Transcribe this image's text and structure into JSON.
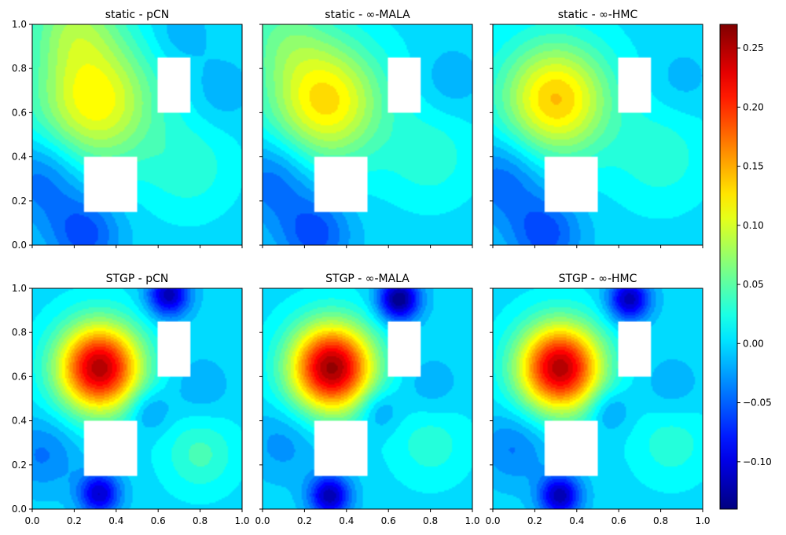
{
  "chart_data": {
    "type": "heatmap",
    "shared_x_ticks": [
      "0.0",
      "0.2",
      "0.4",
      "0.6",
      "0.8",
      "1.0"
    ],
    "shared_y_ticks": [
      "0.0",
      "0.2",
      "0.4",
      "0.6",
      "0.8",
      "1.0"
    ],
    "xlim": [
      0,
      1
    ],
    "ylim": [
      0,
      1
    ],
    "colormap": "jet",
    "holes": [
      {
        "x0": 0.25,
        "x1": 0.5,
        "y0": 0.15,
        "y1": 0.4
      },
      {
        "x0": 0.6,
        "x1": 0.75,
        "y0": 0.6,
        "y1": 0.85
      }
    ],
    "colorbar": {
      "range": [
        -0.14,
        0.27
      ],
      "ticks": [
        -0.1,
        -0.05,
        0.0,
        0.05,
        0.1,
        0.15,
        0.2,
        0.25
      ],
      "tick_labels": [
        "−0.10",
        "−0.05",
        "0.00",
        "0.05",
        "0.10",
        "0.15",
        "0.20",
        "0.25"
      ]
    },
    "panels": [
      {
        "title": "static - pCN",
        "base": 0.0,
        "components": [
          {
            "x": 0.3,
            "y": 0.65,
            "amp": 0.12,
            "sigma": 0.2
          },
          {
            "x": 0.2,
            "y": 1.0,
            "amp": 0.06,
            "sigma": 0.15
          },
          {
            "x": 0.05,
            "y": 0.3,
            "amp": -0.05,
            "sigma": 0.14
          },
          {
            "x": 0.25,
            "y": 0.05,
            "amp": -0.06,
            "sigma": 0.12
          },
          {
            "x": 0.75,
            "y": 0.35,
            "amp": 0.03,
            "sigma": 0.15
          },
          {
            "x": 0.9,
            "y": 0.7,
            "amp": -0.02,
            "sigma": 0.1
          },
          {
            "x": 0.7,
            "y": 0.95,
            "amp": -0.02,
            "sigma": 0.1
          }
        ]
      },
      {
        "title": "static - ∞-MALA",
        "base": 0.0,
        "components": [
          {
            "x": 0.3,
            "y": 0.65,
            "amp": 0.13,
            "sigma": 0.19
          },
          {
            "x": 0.1,
            "y": 0.95,
            "amp": 0.04,
            "sigma": 0.15
          },
          {
            "x": 0.05,
            "y": 0.3,
            "amp": -0.05,
            "sigma": 0.14
          },
          {
            "x": 0.25,
            "y": 0.05,
            "amp": -0.06,
            "sigma": 0.12
          },
          {
            "x": 0.8,
            "y": 0.4,
            "amp": 0.03,
            "sigma": 0.15
          },
          {
            "x": 0.9,
            "y": 0.75,
            "amp": -0.02,
            "sigma": 0.1
          }
        ]
      },
      {
        "title": "static - ∞-HMC",
        "base": 0.0,
        "components": [
          {
            "x": 0.3,
            "y": 0.66,
            "amp": 0.14,
            "sigma": 0.18
          },
          {
            "x": 0.05,
            "y": 0.3,
            "amp": -0.05,
            "sigma": 0.14
          },
          {
            "x": 0.25,
            "y": 0.05,
            "amp": -0.06,
            "sigma": 0.12
          },
          {
            "x": 0.8,
            "y": 0.4,
            "amp": 0.03,
            "sigma": 0.16
          },
          {
            "x": 0.9,
            "y": 0.75,
            "amp": -0.015,
            "sigma": 0.1
          }
        ]
      },
      {
        "title": "STGP - pCN",
        "base": 0.0,
        "components": [
          {
            "x": 0.32,
            "y": 0.64,
            "amp": 0.25,
            "sigma": 0.14
          },
          {
            "x": 0.65,
            "y": 0.97,
            "amp": -0.12,
            "sigma": 0.07
          },
          {
            "x": 0.32,
            "y": 0.07,
            "amp": -0.11,
            "sigma": 0.07
          },
          {
            "x": 0.05,
            "y": 0.25,
            "amp": -0.04,
            "sigma": 0.12
          },
          {
            "x": 0.8,
            "y": 0.25,
            "amp": 0.04,
            "sigma": 0.12
          },
          {
            "x": 0.55,
            "y": 0.45,
            "amp": -0.04,
            "sigma": 0.07
          },
          {
            "x": 0.8,
            "y": 0.55,
            "amp": -0.02,
            "sigma": 0.1
          }
        ]
      },
      {
        "title": "STGP - ∞-MALA",
        "base": 0.0,
        "components": [
          {
            "x": 0.33,
            "y": 0.64,
            "amp": 0.26,
            "sigma": 0.14
          },
          {
            "x": 0.65,
            "y": 0.95,
            "amp": -0.14,
            "sigma": 0.07
          },
          {
            "x": 0.32,
            "y": 0.06,
            "amp": -0.12,
            "sigma": 0.07
          },
          {
            "x": 0.1,
            "y": 0.3,
            "amp": -0.03,
            "sigma": 0.12
          },
          {
            "x": 0.8,
            "y": 0.3,
            "amp": 0.03,
            "sigma": 0.13
          },
          {
            "x": 0.55,
            "y": 0.45,
            "amp": -0.04,
            "sigma": 0.07
          },
          {
            "x": 0.8,
            "y": 0.55,
            "amp": -0.02,
            "sigma": 0.1
          }
        ]
      },
      {
        "title": "STGP - ∞-HMC",
        "base": 0.0,
        "components": [
          {
            "x": 0.32,
            "y": 0.64,
            "amp": 0.25,
            "sigma": 0.14
          },
          {
            "x": 0.65,
            "y": 0.95,
            "amp": -0.12,
            "sigma": 0.07
          },
          {
            "x": 0.32,
            "y": 0.06,
            "amp": -0.12,
            "sigma": 0.07
          },
          {
            "x": 0.1,
            "y": 0.28,
            "amp": -0.04,
            "sigma": 0.12
          },
          {
            "x": 0.85,
            "y": 0.3,
            "amp": 0.03,
            "sigma": 0.13
          },
          {
            "x": 0.55,
            "y": 0.45,
            "amp": -0.04,
            "sigma": 0.07
          },
          {
            "x": 0.85,
            "y": 0.55,
            "amp": -0.02,
            "sigma": 0.1
          }
        ]
      }
    ]
  }
}
